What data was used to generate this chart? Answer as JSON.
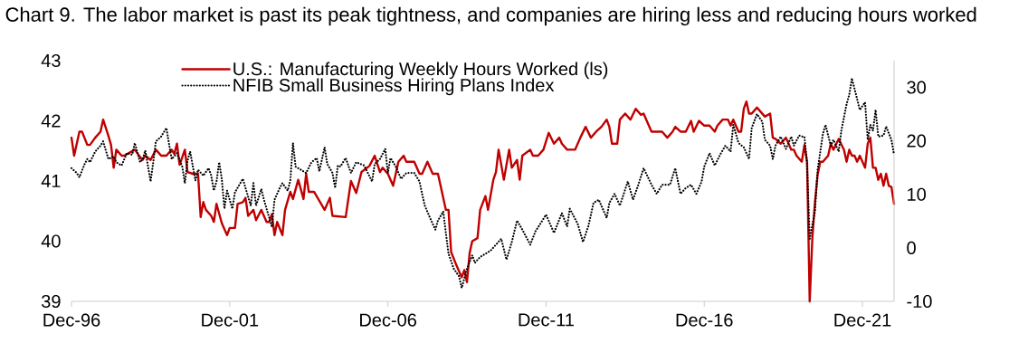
{
  "chart_data": {
    "type": "line",
    "title": "Chart 9. The labor market is past its peak tightness, and companies are hiring less and reducing hours worked",
    "xlim": [
      "1996-12",
      "2022-12"
    ],
    "xticks": [
      {
        "value": "1996-12",
        "label": "Dec-96"
      },
      {
        "value": "2001-12",
        "label": "Dec-01"
      },
      {
        "value": "2006-12",
        "label": "Dec-06"
      },
      {
        "value": "2011-12",
        "label": "Dec-11"
      },
      {
        "value": "2016-12",
        "label": "Dec-16"
      },
      {
        "value": "2021-12",
        "label": "Dec-21"
      }
    ],
    "ylim": [
      39,
      43
    ],
    "yticks": [
      39,
      40,
      41,
      42,
      43
    ],
    "y2lim": [
      -10,
      35
    ],
    "y2ticks": [
      -10,
      0,
      10,
      20,
      30
    ],
    "legend": "top left",
    "grid": false,
    "series": [
      {
        "name": "U.S.: Manufacturing Weekly Hours Worked (ls)",
        "color": "#c00000",
        "line_style": "solid",
        "x": [
          "1996-12",
          "1997-01",
          "1997-03",
          "1997-04",
          "1997-06",
          "1997-07",
          "1997-09",
          "1997-11",
          "1997-12",
          "1998-02",
          "1998-03",
          "1998-04",
          "1998-05",
          "1998-07",
          "1998-08",
          "1998-10",
          "1998-12",
          "1999-02",
          "1999-03",
          "1999-04",
          "1999-06",
          "1999-08",
          "1999-10",
          "1999-12",
          "2000-02",
          "2000-03",
          "2000-04",
          "2000-05",
          "2000-07",
          "2000-08",
          "2000-10",
          "2000-12",
          "2001-01",
          "2001-02",
          "2001-03",
          "2001-05",
          "2001-06",
          "2001-07",
          "2001-09",
          "2001-11",
          "2001-12",
          "2002-02",
          "2002-03",
          "2002-05",
          "2002-06",
          "2002-07",
          "2002-09",
          "2002-10",
          "2002-12",
          "2003-02",
          "2003-03",
          "2003-04",
          "2003-05",
          "2003-06",
          "2003-08",
          "2003-09",
          "2003-11",
          "2003-12",
          "2004-02",
          "2004-04",
          "2004-05",
          "2004-06",
          "2004-08",
          "2004-12",
          "2005-02",
          "2005-03",
          "2005-08",
          "2005-10",
          "2005-12",
          "2006-02",
          "2006-05",
          "2006-07",
          "2006-09",
          "2006-10",
          "2006-12",
          "2007-02",
          "2007-04",
          "2007-06",
          "2007-07",
          "2007-10",
          "2007-12",
          "2008-01",
          "2008-03",
          "2008-05",
          "2008-07",
          "2008-08",
          "2008-10",
          "2008-11",
          "2008-12",
          "2009-02",
          "2009-04",
          "2009-05",
          "2009-06",
          "2009-07",
          "2009-08",
          "2009-10",
          "2009-11",
          "2010-01",
          "2010-02",
          "2010-04",
          "2010-05",
          "2010-06",
          "2010-08",
          "2010-10",
          "2010-11",
          "2011-01",
          "2011-02",
          "2011-03",
          "2011-06",
          "2011-07",
          "2011-09",
          "2011-11",
          "2012-01",
          "2012-03",
          "2012-05",
          "2012-06",
          "2012-08",
          "2012-11",
          "2013-01",
          "2013-03",
          "2013-05",
          "2013-07",
          "2013-09",
          "2013-11",
          "2013-12",
          "2014-01",
          "2014-03",
          "2014-04",
          "2014-06",
          "2014-08",
          "2014-10",
          "2014-12",
          "2015-01",
          "2015-04",
          "2015-08",
          "2015-10",
          "2015-12",
          "2016-01",
          "2016-03",
          "2016-04",
          "2016-05",
          "2016-07",
          "2016-08",
          "2016-10",
          "2016-12",
          "2017-02",
          "2017-04",
          "2017-05",
          "2017-07",
          "2017-09",
          "2017-10",
          "2017-11",
          "2018-01",
          "2018-02",
          "2018-03",
          "2018-04",
          "2018-05",
          "2018-06",
          "2018-08",
          "2018-10",
          "2018-11",
          "2019-01",
          "2019-02",
          "2019-03",
          "2019-05",
          "2019-07",
          "2019-09",
          "2019-10",
          "2019-11",
          "2020-01",
          "2020-02",
          "2020-03",
          "2020-04",
          "2020-05",
          "2020-06",
          "2020-07",
          "2020-08",
          "2020-09",
          "2020-11",
          "2020-12",
          "2021-01",
          "2021-03",
          "2021-05",
          "2021-06",
          "2021-07",
          "2021-08",
          "2021-09",
          "2021-10",
          "2021-11",
          "2022-01",
          "2022-02",
          "2022-03",
          "2022-04",
          "2022-05",
          "2022-06",
          "2022-07",
          "2022-08",
          "2022-09",
          "2022-10",
          "2022-11",
          "2022-12"
        ],
        "values": [
          41.72,
          41.42,
          41.82,
          41.82,
          41.6,
          41.6,
          41.72,
          41.82,
          42.02,
          41.75,
          41.6,
          41.22,
          41.52,
          41.42,
          41.42,
          41.47,
          41.52,
          41.4,
          41.35,
          41.42,
          41.35,
          41.52,
          41.42,
          41.42,
          41.52,
          41.45,
          41.62,
          41.27,
          41.52,
          41.15,
          41.12,
          41.12,
          40.4,
          40.65,
          40.52,
          40.42,
          40.32,
          40.62,
          40.3,
          40.1,
          40.22,
          40.22,
          40.62,
          40.65,
          40.72,
          40.42,
          40.52,
          40.35,
          40.52,
          40.32,
          40.32,
          40.45,
          40.1,
          40.32,
          40.1,
          40.52,
          40.82,
          40.7,
          41.02,
          40.7,
          41.12,
          40.82,
          40.82,
          40.52,
          40.72,
          40.42,
          40.4,
          41.0,
          40.8,
          41.15,
          41.25,
          41.42,
          41.15,
          41.22,
          41.12,
          40.92,
          41.32,
          41.42,
          41.32,
          41.32,
          41.12,
          41.12,
          41.32,
          41.12,
          41.12,
          40.92,
          40.52,
          40.52,
          39.82,
          39.6,
          39.4,
          39.52,
          39.32,
          39.8,
          40.0,
          40.05,
          40.52,
          40.75,
          40.52,
          41.02,
          41.15,
          41.52,
          41.02,
          41.52,
          41.22,
          41.35,
          41.02,
          41.42,
          41.52,
          41.42,
          41.42,
          41.52,
          41.8,
          41.62,
          41.72,
          41.62,
          41.52,
          41.52,
          41.72,
          41.9,
          41.72,
          41.82,
          41.9,
          42.02,
          41.9,
          41.62,
          41.62,
          42.02,
          42.12,
          42.02,
          42.2,
          42.1,
          42.12,
          41.82,
          41.82,
          41.72,
          41.82,
          41.9,
          41.82,
          41.82,
          41.82,
          42.0,
          41.82,
          42.0,
          41.92,
          41.92,
          41.82,
          41.92,
          42.02,
          42.02,
          41.92,
          42.02,
          41.82,
          41.82,
          42.2,
          42.32,
          42.12,
          42.12,
          42.22,
          42.12,
          42.07,
          42.12,
          41.72,
          41.7,
          41.62,
          41.72,
          41.52,
          41.52,
          41.42,
          41.32,
          41.6,
          41.32,
          39.0,
          40.05,
          40.65,
          41.1,
          41.32,
          41.32,
          41.42,
          41.62,
          41.52,
          41.7,
          41.52,
          41.32,
          41.52,
          41.42,
          41.42,
          41.32,
          41.42,
          41.22,
          41.62,
          41.72,
          41.22,
          41.22,
          41.02,
          41.12,
          40.92,
          41.12,
          40.92,
          40.9,
          40.62
        ]
      },
      {
        "name": "NFIB Small Business Hiring Plans Index",
        "color": "#000000",
        "line_style": "dotted",
        "axis": "y2",
        "x": [
          "1996-12",
          "1997-02",
          "1997-03",
          "1997-05",
          "1997-06",
          "1997-07",
          "1997-09",
          "1997-11",
          "1997-12",
          "1998-02",
          "1998-04",
          "1998-05",
          "1998-07",
          "1998-09",
          "1998-11",
          "1998-12",
          "1999-02",
          "1999-03",
          "1999-04",
          "1999-06",
          "1999-07",
          "1999-08",
          "1999-10",
          "1999-12",
          "2000-01",
          "2000-02",
          "2000-04",
          "2000-06",
          "2000-07",
          "2000-08",
          "2000-09",
          "2000-11",
          "2000-12",
          "2001-02",
          "2001-04",
          "2001-05",
          "2001-06",
          "2001-07",
          "2001-08",
          "2001-09",
          "2001-10",
          "2001-11",
          "2002-01",
          "2002-02",
          "2002-05",
          "2002-06",
          "2002-08",
          "2002-09",
          "2002-10",
          "2002-12",
          "2003-01",
          "2003-02",
          "2003-03",
          "2003-04",
          "2003-05",
          "2003-07",
          "2003-08",
          "2003-10",
          "2003-11",
          "2003-12",
          "2004-01",
          "2004-03",
          "2004-05",
          "2004-07",
          "2004-09",
          "2004-10",
          "2004-12",
          "2005-01",
          "2005-03",
          "2005-04",
          "2005-05",
          "2005-06",
          "2005-08",
          "2005-10",
          "2005-12",
          "2006-03",
          "2006-06",
          "2006-07",
          "2006-09",
          "2006-11",
          "2006-12",
          "2007-01",
          "2007-03",
          "2007-05",
          "2007-07",
          "2007-10",
          "2007-12",
          "2008-01",
          "2008-02",
          "2008-04",
          "2008-06",
          "2008-07",
          "2008-09",
          "2008-10",
          "2008-11",
          "2009-01",
          "2009-03",
          "2009-04",
          "2009-06",
          "2009-08",
          "2009-09",
          "2009-11",
          "2010-01",
          "2010-03",
          "2010-05",
          "2010-07",
          "2010-09",
          "2010-11",
          "2011-01",
          "2011-03",
          "2011-06",
          "2011-08",
          "2011-12",
          "2012-03",
          "2012-06",
          "2012-08",
          "2012-09",
          "2012-12",
          "2013-02",
          "2013-04",
          "2013-06",
          "2013-08",
          "2013-11",
          "2013-12",
          "2014-02",
          "2014-04",
          "2014-07",
          "2014-09",
          "2014-11",
          "2015-01",
          "2015-04",
          "2015-06",
          "2015-08",
          "2015-11",
          "2016-01",
          "2016-03",
          "2016-05",
          "2016-07",
          "2016-09",
          "2016-11",
          "2016-12",
          "2017-02",
          "2017-04",
          "2017-06",
          "2017-08",
          "2017-10",
          "2017-11",
          "2018-01",
          "2018-03",
          "2018-05",
          "2018-06",
          "2018-08",
          "2018-10",
          "2018-11",
          "2019-01",
          "2019-02",
          "2019-03",
          "2019-05",
          "2019-07",
          "2019-09",
          "2019-10",
          "2019-12",
          "2020-01",
          "2020-02",
          "2020-03",
          "2020-04",
          "2020-06",
          "2020-07",
          "2020-09",
          "2020-10",
          "2020-12",
          "2021-01",
          "2021-03",
          "2021-04",
          "2021-06",
          "2021-07",
          "2021-08",
          "2021-10",
          "2021-11",
          "2022-01",
          "2022-02",
          "2022-03",
          "2022-04",
          "2022-05",
          "2022-06",
          "2022-08",
          "2022-09",
          "2022-11",
          "2022-12"
        ],
        "values": [
          14.9,
          14.0,
          13.2,
          15.7,
          16.6,
          16.0,
          18.0,
          19.1,
          19.9,
          16.6,
          17.1,
          16.0,
          15.4,
          17.7,
          17.4,
          19.6,
          16.0,
          16.6,
          18.2,
          12.4,
          16.0,
          19.9,
          20.8,
          22.4,
          19.4,
          16.6,
          17.7,
          15.2,
          12.1,
          16.3,
          18.0,
          12.6,
          14.6,
          13.5,
          14.9,
          13.5,
          10.7,
          12.4,
          16.0,
          12.9,
          7.3,
          10.7,
          7.3,
          10.4,
          12.9,
          11.2,
          7.9,
          12.1,
          7.9,
          11.0,
          9.0,
          7.3,
          5.6,
          3.9,
          9.0,
          11.2,
          12.1,
          10.7,
          12.6,
          19.6,
          15.2,
          14.6,
          14.0,
          16.0,
          16.8,
          14.3,
          18.8,
          15.7,
          14.0,
          11.2,
          15.4,
          15.2,
          16.8,
          14.0,
          16.0,
          15.4,
          12.4,
          15.7,
          16.6,
          18.5,
          14.0,
          16.8,
          15.2,
          12.9,
          14.0,
          14.0,
          12.4,
          10.1,
          7.9,
          5.6,
          3.4,
          5.1,
          6.8,
          2.8,
          -1.1,
          -3.9,
          -5.3,
          -7.5,
          -3.9,
          -1.4,
          -2.8,
          -1.7,
          -1.1,
          -0.5,
          0.6,
          1.7,
          -2.2,
          1.1,
          5.1,
          3.4,
          0.6,
          3.1,
          6.2,
          2.8,
          6.5,
          4.0,
          7.3,
          4.5,
          1.1,
          4.0,
          8.4,
          9.0,
          5.6,
          8.4,
          10.1,
          7.9,
          12.4,
          9.0,
          11.8,
          14.9,
          11.8,
          10.1,
          11.8,
          11.8,
          14.9,
          10.1,
          11.2,
          11.8,
          10.1,
          12.4,
          15.2,
          17.7,
          15.4,
          17.4,
          19.1,
          18.0,
          23.0,
          19.6,
          18.8,
          16.6,
          22.4,
          25.0,
          23.6,
          20.2,
          19.1,
          16.6,
          19.1,
          20.8,
          18.5,
          20.8,
          19.1,
          21.0,
          20.8,
          20.8,
          15.7,
          1.7,
          6.8,
          14.6,
          21.3,
          23.0,
          19.1,
          20.2,
          18.0,
          21.9,
          26.9,
          28.6,
          31.7,
          27.8,
          25.8,
          27.2,
          20.2,
          23.0,
          21.9,
          25.8,
          20.8,
          21.0,
          22.7,
          20.2,
          17.4
        ]
      }
    ]
  }
}
